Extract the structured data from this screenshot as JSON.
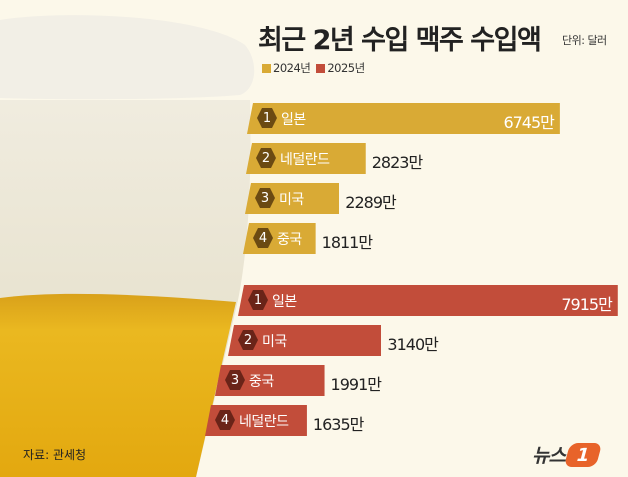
{
  "title": "최근 2년 수입 맥주 수입액",
  "unit": "단위: 달러",
  "source": "자료: 관세청",
  "logo": {
    "text": "뉴스",
    "mark": "1"
  },
  "chart_data": {
    "type": "bar",
    "orientation": "horizontal",
    "title": "최근 2년 수입 맥주 수입액",
    "unit_suffix": "만",
    "legend": [
      "2024년",
      "2025년"
    ],
    "legend_placement": "top-left",
    "colors": {
      "2024년": "#d9aa35",
      "2025년": "#c24d3a"
    },
    "groups": [
      {
        "name": "2024년",
        "items": [
          {
            "rank": "1",
            "country": "일본",
            "value": 6745,
            "label": "6745만"
          },
          {
            "rank": "2",
            "country": "네덜란드",
            "value": 2823,
            "label": "2823만"
          },
          {
            "rank": "3",
            "country": "미국",
            "value": 2289,
            "label": "2289만"
          },
          {
            "rank": "4",
            "country": "중국",
            "value": 1811,
            "label": "1811만"
          }
        ]
      },
      {
        "name": "2025년",
        "items": [
          {
            "rank": "1",
            "country": "일본",
            "value": 7915,
            "label": "7915만"
          },
          {
            "rank": "2",
            "country": "미국",
            "value": 3140,
            "label": "3140만"
          },
          {
            "rank": "3",
            "country": "중국",
            "value": 1991,
            "label": "1991만"
          },
          {
            "rank": "4",
            "country": "네덜란드",
            "value": 1635,
            "label": "1635만"
          }
        ]
      }
    ]
  }
}
